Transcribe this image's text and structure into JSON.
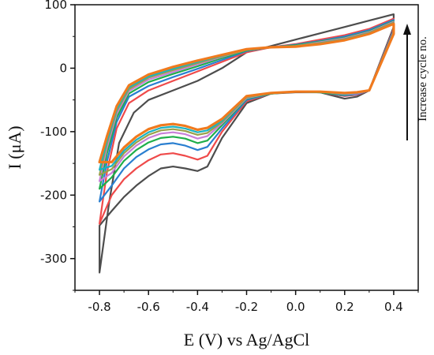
{
  "chart_data": {
    "type": "line",
    "title": "",
    "xlabel": "E (V) vs Ag/AgCl",
    "ylabel": "I (μA)",
    "xlim": [
      -0.9,
      0.5
    ],
    "ylim": [
      -350,
      100
    ],
    "xticks": [
      -0.8,
      -0.6,
      -0.4,
      -0.2,
      0.0,
      0.2,
      0.4
    ],
    "xtick_labels": [
      "-0.8",
      "-0.6",
      "-0.4",
      "-0.2",
      "0.0",
      "0.2",
      "0.4"
    ],
    "yticks": [
      -300,
      -200,
      -100,
      0,
      100
    ],
    "ytick_labels": [
      "-300",
      "-200",
      "-100",
      "0",
      "100"
    ],
    "grid": false,
    "legend": "none",
    "annotation": {
      "text": "Increase cycle no.",
      "arrow": "up"
    },
    "series": [
      {
        "color": "#4d4d4d",
        "x": [
          -0.8,
          -0.76,
          -0.72,
          -0.66,
          -0.6,
          -0.5,
          -0.4,
          -0.3,
          -0.2,
          -0.1,
          0.0,
          0.1,
          0.2,
          0.3,
          0.4,
          0.4,
          0.3,
          0.25,
          0.2,
          0.1,
          0.0,
          -0.1,
          -0.2,
          -0.3,
          -0.36,
          -0.4,
          -0.45,
          -0.5,
          -0.55,
          -0.6,
          -0.65,
          -0.7,
          -0.75,
          -0.8
        ],
        "y": [
          -322,
          -210,
          -118,
          -70,
          -50,
          -35,
          -20,
          0,
          25,
          35,
          45,
          55,
          65,
          75,
          85,
          65,
          -35,
          -45,
          -48,
          -38,
          -38,
          -40,
          -55,
          -110,
          -155,
          -162,
          -158,
          -155,
          -158,
          -170,
          -185,
          -203,
          -225,
          -248
        ]
      },
      {
        "color": "#ef4a4a",
        "x": [
          -0.8,
          -0.77,
          -0.73,
          -0.68,
          -0.6,
          -0.5,
          -0.4,
          -0.3,
          -0.2,
          -0.1,
          0.0,
          0.1,
          0.2,
          0.3,
          0.4,
          0.4,
          0.3,
          0.25,
          0.2,
          0.1,
          0.0,
          -0.1,
          -0.2,
          -0.3,
          -0.36,
          -0.4,
          -0.45,
          -0.5,
          -0.55,
          -0.6,
          -0.65,
          -0.7,
          -0.75,
          -0.8
        ],
        "y": [
          -245,
          -165,
          -95,
          -55,
          -35,
          -20,
          -5,
          10,
          25,
          33,
          38,
          45,
          52,
          62,
          78,
          62,
          -35,
          -42,
          -44,
          -38,
          -37,
          -40,
          -52,
          -100,
          -138,
          -144,
          -138,
          -134,
          -136,
          -145,
          -158,
          -175,
          -200,
          -245
        ]
      },
      {
        "color": "#2a7fd0",
        "x": [
          -0.8,
          -0.77,
          -0.73,
          -0.68,
          -0.6,
          -0.5,
          -0.4,
          -0.3,
          -0.2,
          -0.1,
          0.0,
          0.1,
          0.2,
          0.3,
          0.4,
          0.4,
          0.3,
          0.25,
          0.2,
          0.1,
          0.0,
          -0.1,
          -0.2,
          -0.3,
          -0.36,
          -0.4,
          -0.45,
          -0.5,
          -0.55,
          -0.6,
          -0.65,
          -0.7,
          -0.75,
          -0.8
        ],
        "y": [
          -210,
          -148,
          -85,
          -45,
          -28,
          -14,
          -1,
          13,
          27,
          33,
          37,
          43,
          50,
          60,
          76,
          60,
          -35,
          -41,
          -43,
          -38,
          -37,
          -40,
          -50,
          -95,
          -124,
          -129,
          -122,
          -118,
          -120,
          -128,
          -140,
          -158,
          -185,
          -210
        ]
      },
      {
        "color": "#1fae4a",
        "x": [
          -0.8,
          -0.77,
          -0.73,
          -0.68,
          -0.6,
          -0.5,
          -0.4,
          -0.3,
          -0.2,
          -0.1,
          0.0,
          0.1,
          0.2,
          0.3,
          0.4,
          0.4,
          0.3,
          0.25,
          0.2,
          0.1,
          0.0,
          -0.1,
          -0.2,
          -0.3,
          -0.36,
          -0.4,
          -0.45,
          -0.5,
          -0.55,
          -0.6,
          -0.65,
          -0.7,
          -0.75,
          -0.8
        ],
        "y": [
          -190,
          -135,
          -78,
          -40,
          -22,
          -9,
          3,
          16,
          28,
          33,
          36,
          42,
          48,
          58,
          74,
          58,
          -35,
          -40,
          -42,
          -38,
          -37,
          -40,
          -48,
          -90,
          -114,
          -118,
          -111,
          -108,
          -110,
          -117,
          -129,
          -146,
          -172,
          -190
        ]
      },
      {
        "color": "#c77fd8",
        "x": [
          -0.8,
          -0.77,
          -0.73,
          -0.68,
          -0.6,
          -0.5,
          -0.4,
          -0.3,
          -0.2,
          -0.1,
          0.0,
          0.1,
          0.2,
          0.3,
          0.4,
          0.4,
          0.3,
          0.25,
          0.2,
          0.1,
          0.0,
          -0.1,
          -0.2,
          -0.3,
          -0.36,
          -0.4,
          -0.45,
          -0.5,
          -0.55,
          -0.6,
          -0.65,
          -0.7,
          -0.75,
          -0.8
        ],
        "y": [
          -178,
          -126,
          -72,
          -36,
          -18,
          -6,
          6,
          18,
          29,
          33,
          35,
          41,
          47,
          57,
          73,
          57,
          -35,
          -40,
          -41,
          -37,
          -37,
          -39,
          -47,
          -87,
          -107,
          -111,
          -104,
          -101,
          -103,
          -110,
          -122,
          -139,
          -165,
          -178
        ]
      },
      {
        "color": "#9aa04a",
        "x": [
          -0.8,
          -0.77,
          -0.73,
          -0.68,
          -0.6,
          -0.5,
          -0.4,
          -0.3,
          -0.2,
          -0.1,
          0.0,
          0.1,
          0.2,
          0.3,
          0.4,
          0.4,
          0.3,
          0.25,
          0.2,
          0.1,
          0.0,
          -0.1,
          -0.2,
          -0.3,
          -0.36,
          -0.4,
          -0.45,
          -0.5,
          -0.55,
          -0.6,
          -0.65,
          -0.7,
          -0.75,
          -0.8
        ],
        "y": [
          -168,
          -120,
          -68,
          -33,
          -15,
          -3,
          8,
          19,
          29,
          33,
          35,
          40,
          46,
          56,
          72,
          56,
          -35,
          -39,
          -40,
          -37,
          -37,
          -39,
          -46,
          -85,
          -102,
          -105,
          -99,
          -96,
          -98,
          -105,
          -117,
          -134,
          -159,
          -168
        ]
      },
      {
        "color": "#19b3c2",
        "x": [
          -0.8,
          -0.77,
          -0.73,
          -0.68,
          -0.6,
          -0.5,
          -0.4,
          -0.3,
          -0.2,
          -0.1,
          0.0,
          0.1,
          0.2,
          0.3,
          0.4,
          0.4,
          0.3,
          0.25,
          0.2,
          0.1,
          0.0,
          -0.1,
          -0.2,
          -0.3,
          -0.36,
          -0.4,
          -0.45,
          -0.5,
          -0.55,
          -0.6,
          -0.65,
          -0.7,
          -0.75,
          -0.8
        ],
        "y": [
          -160,
          -115,
          -65,
          -30,
          -13,
          -1,
          10,
          20,
          30,
          33,
          34,
          39,
          45,
          55,
          71,
          55,
          -35,
          -39,
          -40,
          -37,
          -37,
          -39,
          -45,
          -83,
          -98,
          -101,
          -95,
          -92,
          -94,
          -101,
          -113,
          -130,
          -154,
          -160
        ]
      },
      {
        "color": "#f07a1e",
        "x": [
          -0.8,
          -0.77,
          -0.73,
          -0.68,
          -0.6,
          -0.5,
          -0.4,
          -0.3,
          -0.2,
          -0.1,
          0.0,
          0.1,
          0.2,
          0.3,
          0.4,
          0.4,
          0.3,
          0.25,
          0.2,
          0.1,
          0.0,
          -0.1,
          -0.2,
          -0.3,
          -0.36,
          -0.4,
          -0.45,
          -0.5,
          -0.55,
          -0.6,
          -0.65,
          -0.7,
          -0.75,
          -0.8
        ],
        "y": [
          -148,
          -108,
          -60,
          -27,
          -10,
          2,
          12,
          21,
          30,
          33,
          34,
          38,
          44,
          54,
          70,
          54,
          -35,
          -38,
          -39,
          -37,
          -37,
          -39,
          -44,
          -80,
          -94,
          -97,
          -91,
          -88,
          -90,
          -96,
          -108,
          -125,
          -148,
          -148
        ]
      }
    ]
  }
}
